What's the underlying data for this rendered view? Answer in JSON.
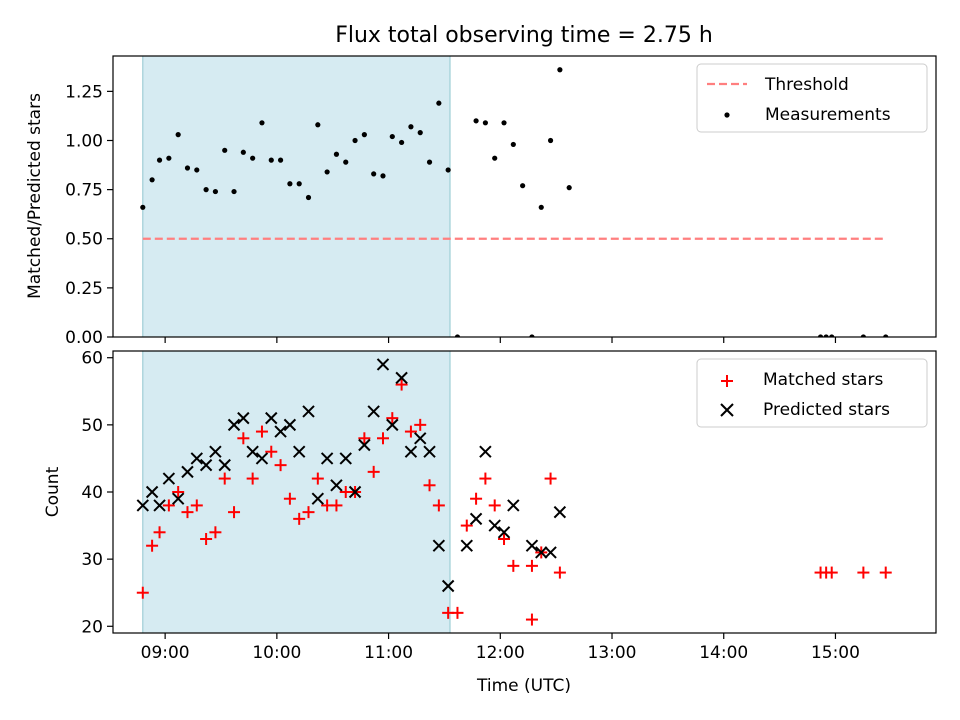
{
  "chart_data": {
    "type": "scatter",
    "title": "Flux total observing time = 2.75 h",
    "shared_x": {
      "label": "Time (UTC)",
      "range": [
        "08:32",
        "15:54"
      ],
      "ticks": [
        "09:00",
        "10:00",
        "11:00",
        "12:00",
        "13:00",
        "14:00",
        "15:00"
      ]
    },
    "highlight_band": {
      "from": "08:48",
      "to": "11:33",
      "color": "#add8e6"
    },
    "panels": [
      {
        "id": "ratio",
        "ylabel": "Matched/Predicted stars",
        "ylim": [
          0,
          1.43
        ],
        "yticks": [
          "0.00",
          "0.25",
          "0.50",
          "0.75",
          "1.00",
          "1.25"
        ],
        "legend": {
          "position": "top-right",
          "entries": [
            "Threshold",
            "Measurements"
          ]
        },
        "threshold": {
          "name": "Threshold",
          "value": 0.5,
          "x_from": "08:48",
          "x_to": "15:27",
          "color": "#ff7f7f",
          "style": "dashed"
        },
        "series": [
          {
            "name": "Measurements",
            "color": "#000000",
            "marker": "dot",
            "points": [
              [
                "08:48",
                0.66
              ],
              [
                "08:53",
                0.8
              ],
              [
                "08:57",
                0.9
              ],
              [
                "09:02",
                0.91
              ],
              [
                "09:07",
                1.03
              ],
              [
                "09:12",
                0.86
              ],
              [
                "09:17",
                0.85
              ],
              [
                "09:22",
                0.75
              ],
              [
                "09:27",
                0.74
              ],
              [
                "09:32",
                0.95
              ],
              [
                "09:37",
                0.74
              ],
              [
                "09:42",
                0.94
              ],
              [
                "09:47",
                0.91
              ],
              [
                "09:52",
                1.09
              ],
              [
                "09:57",
                0.9
              ],
              [
                "10:02",
                0.9
              ],
              [
                "10:07",
                0.78
              ],
              [
                "10:12",
                0.78
              ],
              [
                "10:17",
                0.71
              ],
              [
                "10:22",
                1.08
              ],
              [
                "10:27",
                0.84
              ],
              [
                "10:32",
                0.93
              ],
              [
                "10:37",
                0.89
              ],
              [
                "10:42",
                1.0
              ],
              [
                "10:47",
                1.03
              ],
              [
                "10:52",
                0.83
              ],
              [
                "10:57",
                0.82
              ],
              [
                "11:02",
                1.02
              ],
              [
                "11:07",
                0.99
              ],
              [
                "11:12",
                1.07
              ],
              [
                "11:17",
                1.04
              ],
              [
                "11:22",
                0.89
              ],
              [
                "11:27",
                1.19
              ],
              [
                "11:32",
                0.85
              ],
              [
                "11:37",
                0.0
              ],
              [
                "11:47",
                1.1
              ],
              [
                "11:52",
                1.09
              ],
              [
                "11:57",
                0.91
              ],
              [
                "12:02",
                1.09
              ],
              [
                "12:07",
                0.98
              ],
              [
                "12:12",
                0.77
              ],
              [
                "12:17",
                0.0
              ],
              [
                "12:22",
                0.66
              ],
              [
                "12:27",
                1.0
              ],
              [
                "12:32",
                1.36
              ],
              [
                "12:37",
                0.76
              ],
              [
                "14:52",
                0.0
              ],
              [
                "14:55",
                0.0
              ],
              [
                "14:58",
                0.0
              ],
              [
                "15:15",
                0.0
              ],
              [
                "15:27",
                0.0
              ]
            ]
          }
        ]
      },
      {
        "id": "counts",
        "ylabel": "Count",
        "ylim": [
          19,
          61
        ],
        "yticks": [
          "20",
          "30",
          "40",
          "50",
          "60"
        ],
        "legend": {
          "position": "top-right",
          "entries": [
            "Matched stars",
            "Predicted stars"
          ]
        },
        "series": [
          {
            "name": "Matched stars",
            "color": "#ff0000",
            "marker": "plus",
            "points": [
              [
                "08:48",
                25
              ],
              [
                "08:53",
                32
              ],
              [
                "08:57",
                34
              ],
              [
                "09:02",
                38
              ],
              [
                "09:07",
                40
              ],
              [
                "09:12",
                37
              ],
              [
                "09:17",
                38
              ],
              [
                "09:22",
                33
              ],
              [
                "09:27",
                34
              ],
              [
                "09:32",
                42
              ],
              [
                "09:37",
                37
              ],
              [
                "09:42",
                48
              ],
              [
                "09:47",
                42
              ],
              [
                "09:52",
                49
              ],
              [
                "09:57",
                46
              ],
              [
                "10:02",
                44
              ],
              [
                "10:07",
                39
              ],
              [
                "10:12",
                36
              ],
              [
                "10:17",
                37
              ],
              [
                "10:22",
                42
              ],
              [
                "10:27",
                38
              ],
              [
                "10:32",
                38
              ],
              [
                "10:37",
                40
              ],
              [
                "10:42",
                40
              ],
              [
                "10:47",
                48
              ],
              [
                "10:52",
                43
              ],
              [
                "10:57",
                48
              ],
              [
                "11:02",
                51
              ],
              [
                "11:07",
                56
              ],
              [
                "11:12",
                49
              ],
              [
                "11:17",
                50
              ],
              [
                "11:22",
                41
              ],
              [
                "11:27",
                38
              ],
              [
                "11:32",
                22
              ],
              [
                "11:37",
                22
              ],
              [
                "11:42",
                35
              ],
              [
                "11:47",
                39
              ],
              [
                "11:52",
                42
              ],
              [
                "11:57",
                38
              ],
              [
                "12:02",
                33
              ],
              [
                "12:07",
                29
              ],
              [
                "12:17",
                29
              ],
              [
                "12:17",
                21
              ],
              [
                "12:22",
                31
              ],
              [
                "12:27",
                42
              ],
              [
                "12:32",
                28
              ],
              [
                "14:52",
                28
              ],
              [
                "14:55",
                28
              ],
              [
                "14:58",
                28
              ],
              [
                "15:15",
                28
              ],
              [
                "15:27",
                28
              ]
            ]
          },
          {
            "name": "Predicted stars",
            "color": "#000000",
            "marker": "x",
            "points": [
              [
                "08:48",
                38
              ],
              [
                "08:53",
                40
              ],
              [
                "08:57",
                38
              ],
              [
                "09:02",
                42
              ],
              [
                "09:07",
                39
              ],
              [
                "09:12",
                43
              ],
              [
                "09:17",
                45
              ],
              [
                "09:22",
                44
              ],
              [
                "09:27",
                46
              ],
              [
                "09:32",
                44
              ],
              [
                "09:37",
                50
              ],
              [
                "09:42",
                51
              ],
              [
                "09:47",
                46
              ],
              [
                "09:52",
                45
              ],
              [
                "09:57",
                51
              ],
              [
                "10:02",
                49
              ],
              [
                "10:07",
                50
              ],
              [
                "10:12",
                46
              ],
              [
                "10:17",
                52
              ],
              [
                "10:22",
                39
              ],
              [
                "10:27",
                45
              ],
              [
                "10:32",
                41
              ],
              [
                "10:37",
                45
              ],
              [
                "10:42",
                40
              ],
              [
                "10:47",
                47
              ],
              [
                "10:52",
                52
              ],
              [
                "10:57",
                59
              ],
              [
                "11:02",
                50
              ],
              [
                "11:07",
                57
              ],
              [
                "11:12",
                46
              ],
              [
                "11:17",
                48
              ],
              [
                "11:22",
                46
              ],
              [
                "11:27",
                32
              ],
              [
                "11:32",
                26
              ],
              [
                "11:42",
                32
              ],
              [
                "11:47",
                36
              ],
              [
                "11:52",
                46
              ],
              [
                "11:57",
                35
              ],
              [
                "12:02",
                34
              ],
              [
                "12:07",
                38
              ],
              [
                "12:17",
                32
              ],
              [
                "12:22",
                31
              ],
              [
                "12:27",
                31
              ],
              [
                "12:32",
                37
              ]
            ]
          }
        ]
      }
    ]
  }
}
